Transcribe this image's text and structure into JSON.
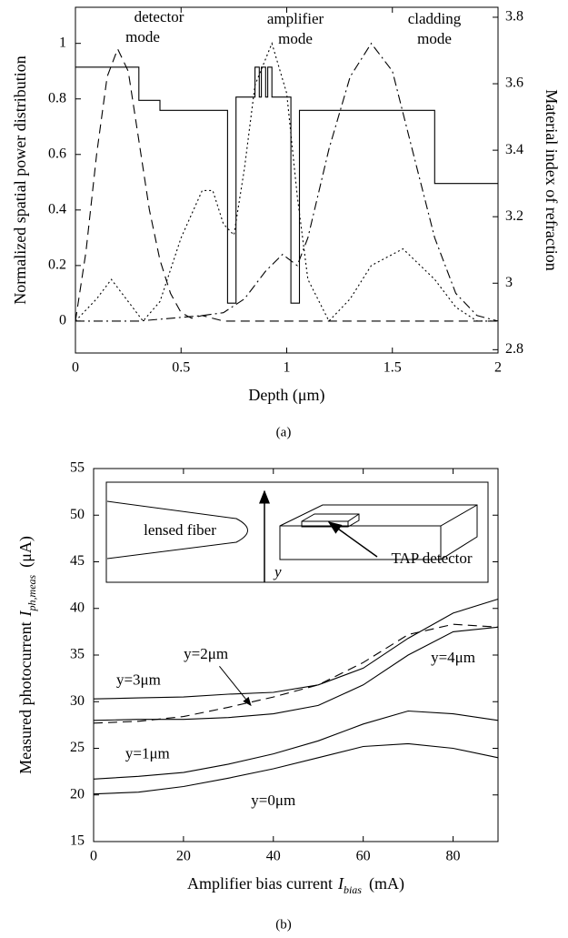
{
  "chart_data": [
    {
      "type": "line",
      "caption": "(a)",
      "xlabel": "Depth (μm)",
      "ylabel": "Normalized spatial power distribution",
      "y2label": "Material index of refraction",
      "xlim": [
        0,
        2
      ],
      "xticks": [
        0,
        0.5,
        1,
        1.5,
        2
      ],
      "ylim": [
        -0.115,
        1.13
      ],
      "yticks": [
        0,
        0.2,
        0.4,
        0.6,
        0.8,
        1
      ],
      "y2lim": [
        2.79,
        3.83
      ],
      "y2ticks": [
        2.8,
        3,
        3.2,
        3.4,
        3.6,
        3.8
      ],
      "annotations": [
        [
          "detector",
          "mode"
        ],
        [
          "amplifier",
          "mode"
        ],
        [
          "cladding",
          "mode"
        ]
      ],
      "series": [
        {
          "color": "#000000",
          "dash": "dashed",
          "x": [
            0,
            0.05,
            0.1,
            0.15,
            0.2,
            0.25,
            0.3,
            0.35,
            0.4,
            0.45,
            0.5,
            0.55,
            0.6,
            0.7,
            0.8,
            1.0,
            1.5,
            2
          ],
          "values": [
            0,
            0.25,
            0.6,
            0.88,
            0.98,
            0.9,
            0.65,
            0.4,
            0.22,
            0.1,
            0.03,
            0.01,
            0.02,
            0,
            0,
            0,
            0,
            0
          ]
        },
        {
          "color": "#000000",
          "dash": "dotted",
          "x": [
            0,
            0.1,
            0.17,
            0.25,
            0.32,
            0.4,
            0.5,
            0.6,
            0.65,
            0.7,
            0.75,
            0.8,
            0.85,
            0.93,
            1.0,
            1.05,
            1.1,
            1.2,
            1.3,
            1.4,
            1.55,
            1.7,
            1.8,
            1.9,
            2
          ],
          "values": [
            0,
            0.08,
            0.15,
            0.07,
            0,
            0.07,
            0.3,
            0.47,
            0.47,
            0.35,
            0.31,
            0.55,
            0.85,
            1.0,
            0.82,
            0.45,
            0.15,
            0,
            0.08,
            0.2,
            0.26,
            0.15,
            0.05,
            0,
            0
          ]
        },
        {
          "color": "#000000",
          "dash": "dashdot",
          "x": [
            0,
            0.3,
            0.6,
            0.7,
            0.8,
            0.9,
            0.98,
            1.05,
            1.1,
            1.2,
            1.3,
            1.4,
            1.5,
            1.6,
            1.7,
            1.8,
            1.9,
            2
          ],
          "values": [
            0,
            0,
            0.02,
            0.03,
            0.08,
            0.18,
            0.24,
            0.2,
            0.3,
            0.62,
            0.88,
            1.0,
            0.9,
            0.6,
            0.3,
            0.1,
            0.02,
            0
          ]
        },
        {
          "color": "#000000",
          "dash": "solid",
          "axis": "y2",
          "x": [
            0,
            0.3,
            0.3,
            0.4,
            0.4,
            0.72,
            0.72,
            0.76,
            0.76,
            0.85,
            0.85,
            0.87,
            0.87,
            0.88,
            0.88,
            0.9,
            0.9,
            0.91,
            0.91,
            0.93,
            0.93,
            0.95,
            0.95,
            1.02,
            1.02,
            1.06,
            1.06,
            1.7,
            1.7,
            2
          ],
          "values": [
            3.65,
            3.65,
            3.55,
            3.55,
            3.52,
            3.52,
            2.94,
            2.94,
            3.56,
            3.56,
            3.65,
            3.65,
            3.56,
            3.56,
            3.65,
            3.65,
            3.56,
            3.56,
            3.65,
            3.65,
            3.56,
            3.56,
            3.56,
            3.56,
            2.94,
            2.94,
            3.52,
            3.52,
            3.3,
            3.3
          ]
        }
      ]
    },
    {
      "type": "line",
      "caption": "(b)",
      "xlabel": {
        "text": "Amplifier bias current",
        "symbol": "I",
        "subscript": "bias",
        "unit": "(mA)"
      },
      "ylabel": {
        "text": "Measured photocurrent",
        "symbol": "I",
        "subscript": "ph,meas",
        "unit": "(μA)"
      },
      "xlim": [
        0,
        90
      ],
      "xticks": [
        0,
        20,
        40,
        60,
        80
      ],
      "ylim": [
        15,
        55
      ],
      "yticks": [
        15,
        20,
        25,
        30,
        35,
        40,
        45,
        50,
        55
      ],
      "inset": {
        "fiber": "lensed fiber",
        "axis": "y",
        "detector": "TAP detector"
      },
      "x": [
        0,
        10,
        20,
        30,
        40,
        50,
        60,
        70,
        80,
        90
      ],
      "series": [
        {
          "name": "y=3μm",
          "color": "#000000",
          "dash": "solid",
          "values": [
            30.3,
            30.4,
            30.5,
            30.8,
            31.0,
            31.8,
            33.6,
            36.8,
            39.5,
            41
          ]
        },
        {
          "name": "y=2μm",
          "color": "#000000",
          "dash": "dashed",
          "values": [
            27.7,
            27.9,
            28.4,
            29.4,
            30.5,
            31.8,
            34.2,
            37.2,
            38.3,
            38
          ]
        },
        {
          "name": "y=4μm",
          "color": "#000000",
          "dash": "solid",
          "values": [
            28,
            28.1,
            28.1,
            28.3,
            28.7,
            29.6,
            31.8,
            35.0,
            37.5,
            38
          ]
        },
        {
          "name": "y=1μm",
          "color": "#000000",
          "dash": "solid",
          "values": [
            21.7,
            22.0,
            22.4,
            23.3,
            24.4,
            25.8,
            27.6,
            29.0,
            28.7,
            28
          ]
        },
        {
          "name": "y=0μm",
          "color": "#000000",
          "dash": "solid",
          "values": [
            20.1,
            20.3,
            20.9,
            21.8,
            22.8,
            24.0,
            25.2,
            25.5,
            25.0,
            24
          ]
        }
      ]
    }
  ]
}
